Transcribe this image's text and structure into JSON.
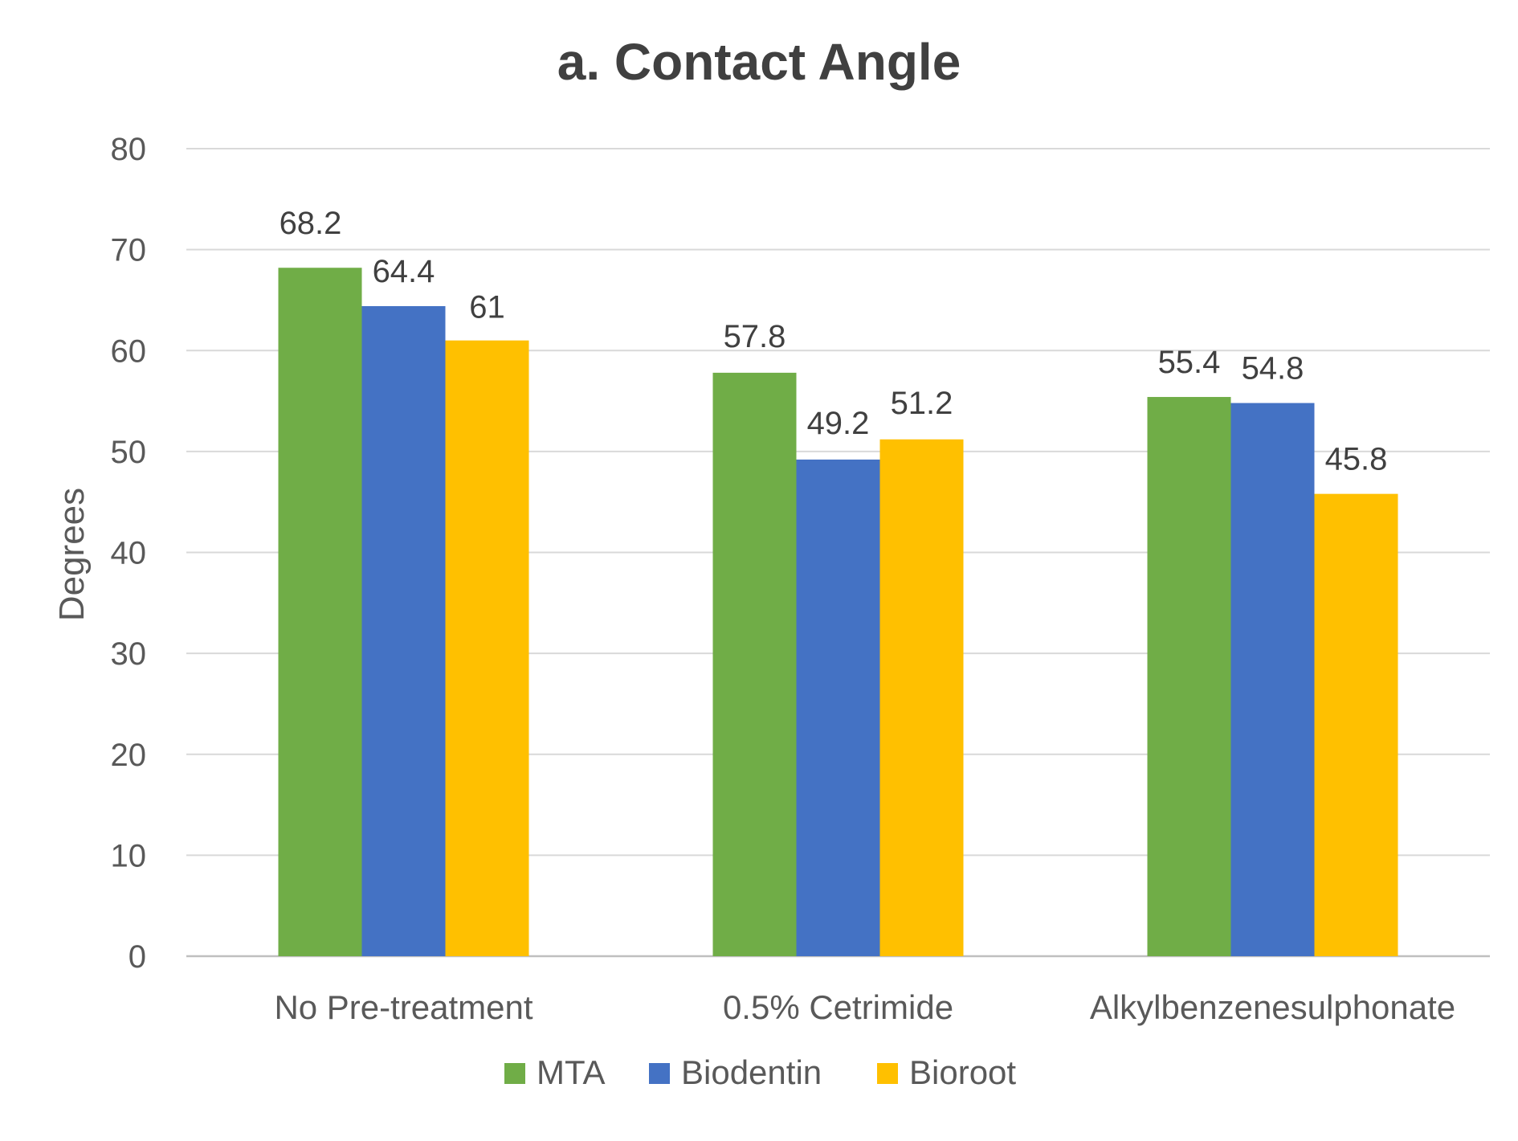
{
  "chart_data": {
    "type": "bar",
    "title": "a. Contact Angle",
    "xlabel": "",
    "ylabel": "Degrees",
    "ylim": [
      0,
      80
    ],
    "yticks": [
      0,
      10,
      20,
      30,
      40,
      50,
      60,
      70,
      80
    ],
    "grid": true,
    "legend_position": "bottom",
    "categories": [
      "No Pre-treatment",
      "0.5% Cetrimide",
      "Alkylbenzenesulphonate"
    ],
    "series": [
      {
        "name": "MTA",
        "color": "#70AD47",
        "values": [
          68.2,
          57.8,
          55.4
        ],
        "labels": [
          "68.2",
          "57.8",
          "55.4"
        ]
      },
      {
        "name": "Biodentin",
        "color": "#4472C4",
        "values": [
          64.4,
          49.2,
          54.8
        ],
        "labels": [
          "64.4",
          "49.2",
          "54.8"
        ]
      },
      {
        "name": "Bioroot",
        "color": "#FFC000",
        "values": [
          61,
          51.2,
          45.8
        ],
        "labels": [
          "61",
          "51.2",
          "45.8"
        ]
      }
    ]
  }
}
